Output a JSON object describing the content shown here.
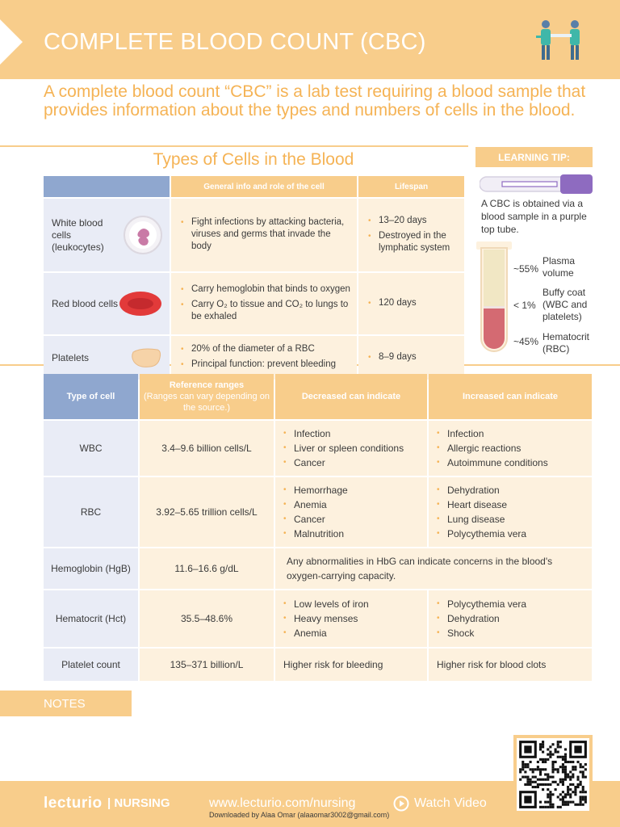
{
  "header": {
    "title": "COMPLETE BLOOD COUNT (CBC)",
    "icon": "medical-team-icon"
  },
  "intro": "A complete blood count “CBC” is a lab test requiring a blood sample that provides information about the types and numbers of cells in the blood.",
  "types": {
    "title": "Types of Cells in the Blood",
    "col_info": "General info and role of the cell",
    "col_lifespan": "Lifespan",
    "rows": [
      {
        "name": "White blood cells (leukocytes)",
        "icon": "white-blood-cell-icon",
        "info": [
          "Fight infections by attacking bacteria, viruses and germs that invade the body"
        ],
        "lifespan": [
          "13–20 days",
          "Destroyed in the lymphatic system"
        ]
      },
      {
        "name": "Red blood cells",
        "icon": "red-blood-cell-icon",
        "info": [
          "Carry hemoglobin that binds to oxygen",
          "Carry O₂ to tissue and CO₂ to lungs to be exhaled"
        ],
        "lifespan": [
          "120 days"
        ]
      },
      {
        "name": "Platelets",
        "icon": "platelet-icon",
        "info": [
          "20% of the diameter of a RBC",
          "Principal function: prevent bleeding"
        ],
        "lifespan": [
          "8–9 days"
        ]
      }
    ]
  },
  "tip": {
    "title": "LEARNING TIP:",
    "text": "A CBC is obtained via a blood sample in a purple top tube.",
    "plasma_pct": "~55%",
    "plasma_label": "Plasma volume",
    "buffy_pct": "< 1%",
    "buffy_label": "Buffy coat (WBC and platelets)",
    "hct_pct": "~45%",
    "hct_label": "Hematocrit (RBC)"
  },
  "ref": {
    "col_type": "Type of cell",
    "col_range": "Reference ranges",
    "col_range_note": "(Ranges can vary depending on the source.)",
    "col_dec": "Decreased can indicate",
    "col_inc": "Increased can indicate",
    "wbc": {
      "label": "WBC",
      "range": "3.4–9.6 billion cells/L",
      "dec": [
        "Infection",
        "Liver or spleen conditions",
        "Cancer"
      ],
      "inc": [
        "Infection",
        "Allergic reactions",
        "Autoimmune conditions"
      ]
    },
    "rbc": {
      "label": "RBC",
      "range": "3.92–5.65 trillion cells/L",
      "dec": [
        "Hemorrhage",
        "Anemia",
        "Cancer",
        "Malnutrition"
      ],
      "inc": [
        "Dehydration",
        "Heart disease",
        "Lung disease",
        "Polycythemia vera"
      ]
    },
    "hgb": {
      "label": "Hemoglobin (HgB)",
      "range": "11.6–16.6 g/dL",
      "note": "Any abnormalities in HbG can indicate concerns in the blood's oxygen-carrying capacity."
    },
    "hct": {
      "label": "Hematocrit (Hct)",
      "range": "35.5–48.6%",
      "dec": [
        "Low levels of iron",
        "Heavy menses",
        "Anemia"
      ],
      "inc": [
        "Polycythemia vera",
        "Dehydration",
        "Shock"
      ]
    },
    "plt": {
      "label": "Platelet count",
      "range": "135–371 billion/L",
      "dec": "Higher risk for bleeding",
      "inc": "Higher risk for blood clots"
    }
  },
  "notes": "NOTES",
  "footer": {
    "logo": "lecturio",
    "brand": "| NURSING",
    "url": "www.lecturio.com/nursing",
    "watch": "Watch Video",
    "downloaded": "Downloaded by Alaa Omar (alaaomar3002@gmail.com)",
    "qr_icon": "qr-code-icon"
  },
  "colors": {
    "accent": "#f8cd8b",
    "accent_text": "#f5b355",
    "blue": "#8fa7cf",
    "cell_bg": "#fdf1de",
    "label_bg": "#e9ecf6"
  }
}
